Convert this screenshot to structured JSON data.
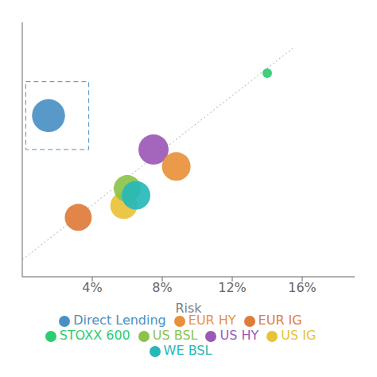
{
  "chart_data": {
    "type": "scatter",
    "xlabel": "Risk",
    "xlim": [
      0,
      19
    ],
    "ylim": [
      0,
      15
    ],
    "xticks": [
      {
        "value": 4,
        "label": "4%"
      },
      {
        "value": 8,
        "label": "8%"
      },
      {
        "value": 12,
        "label": "12%"
      },
      {
        "value": 16,
        "label": "16%"
      }
    ],
    "tick_labels": "x",
    "grid": false,
    "legend": "bottom",
    "series": [
      {
        "name": "Direct Lending",
        "color": "#4a90c4",
        "x": [
          1.5
        ],
        "y": [
          9.5
        ],
        "sizes": [
          1200
        ]
      },
      {
        "name": "EUR IG",
        "color": "#e07b3a",
        "x": [
          3.2
        ],
        "y": [
          3.5
        ],
        "sizes": [
          800
        ]
      },
      {
        "name": "US IG",
        "color": "#e8c23a",
        "x": [
          5.8
        ],
        "y": [
          4.2
        ],
        "sizes": [
          800
        ]
      },
      {
        "name": "US BSL",
        "color": "#8bc34a",
        "x": [
          6.0
        ],
        "y": [
          5.2
        ],
        "sizes": [
          800
        ]
      },
      {
        "name": "WE BSL",
        "color": "#26b8b8",
        "x": [
          6.5
        ],
        "y": [
          4.8
        ],
        "sizes": [
          900
        ]
      },
      {
        "name": "US HY",
        "color": "#9b59b6",
        "x": [
          7.5
        ],
        "y": [
          7.5
        ],
        "sizes": [
          1000
        ]
      },
      {
        "name": "EUR HY",
        "color": "#e8913a",
        "x": [
          8.8
        ],
        "y": [
          6.5
        ],
        "sizes": [
          900
        ]
      },
      {
        "name": "STOXX 600",
        "color": "#2ecc71",
        "x": [
          14.0
        ],
        "y": [
          12.0
        ],
        "sizes": [
          100
        ]
      }
    ],
    "trendline": {
      "x": [
        0.0,
        15.5
      ],
      "y": [
        1.0,
        13.5
      ],
      "line_style": "dotted"
    },
    "box": {
      "x0": 0.2,
      "y0": 7.5,
      "x1": 3.8,
      "y1": 11.5,
      "color": "#4a90c4",
      "line_style": "dashed"
    }
  }
}
